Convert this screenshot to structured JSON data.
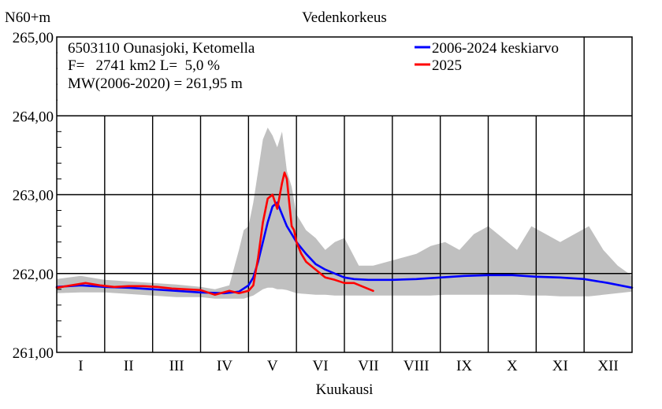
{
  "chart_data": {
    "type": "line",
    "title": "Vedenkorkeus",
    "ylabel": "N60+m",
    "xlabel": "Kuukausi",
    "ylim": [
      261.0,
      265.0
    ],
    "yticks": [
      "261,00",
      "262,00",
      "263,00",
      "264,00",
      "265,00"
    ],
    "xlim": [
      0,
      12
    ],
    "months": [
      "I",
      "II",
      "III",
      "IV",
      "V",
      "VI",
      "VII",
      "VIII",
      "IX",
      "X",
      "XI",
      "XII"
    ],
    "info": [
      "6503110 Ounasjoki, Ketomella",
      "F=   2741 km2 L=  5,0 %",
      "MW(2006-2020) = 261,95 m"
    ],
    "legend_position": "top-right",
    "grid": true,
    "colors": {
      "band": "#c0c0c0",
      "mean": "#0000ff",
      "current": "#ff0000"
    },
    "band": {
      "x": [
        0,
        0.5,
        1,
        1.5,
        2,
        2.5,
        3,
        3.3,
        3.6,
        3.8,
        3.9,
        4.0,
        4.1,
        4.2,
        4.3,
        4.4,
        4.5,
        4.6,
        4.7,
        4.8,
        4.9,
        5.0,
        5.2,
        5.4,
        5.6,
        5.8,
        6.0,
        6.3,
        6.6,
        6.9,
        7.2,
        7.5,
        7.8,
        8.1,
        8.4,
        8.7,
        9.0,
        9.3,
        9.6,
        9.9,
        10.2,
        10.5,
        10.8,
        11.1,
        11.4,
        11.7,
        12
      ],
      "upper": [
        261.93,
        261.97,
        261.92,
        261.9,
        261.88,
        261.86,
        261.83,
        261.8,
        261.85,
        262.3,
        262.55,
        262.6,
        262.9,
        263.3,
        263.7,
        263.85,
        263.75,
        263.6,
        263.8,
        263.3,
        263.1,
        262.75,
        262.55,
        262.45,
        262.3,
        262.4,
        262.45,
        262.1,
        262.1,
        262.15,
        262.2,
        262.25,
        262.35,
        262.4,
        262.3,
        262.5,
        262.6,
        262.45,
        262.3,
        262.6,
        262.5,
        262.4,
        262.5,
        262.6,
        262.3,
        262.1,
        261.97
      ],
      "lower": [
        261.75,
        261.76,
        261.76,
        261.74,
        261.72,
        261.7,
        261.7,
        261.68,
        261.68,
        261.68,
        261.68,
        261.7,
        261.72,
        261.76,
        261.8,
        261.82,
        261.82,
        261.8,
        261.8,
        261.79,
        261.77,
        261.75,
        261.74,
        261.73,
        261.73,
        261.72,
        261.72,
        261.72,
        261.72,
        261.72,
        261.72,
        261.72,
        261.72,
        261.73,
        261.73,
        261.73,
        261.73,
        261.73,
        261.73,
        261.72,
        261.72,
        261.71,
        261.71,
        261.71,
        261.73,
        261.75,
        261.77
      ]
    },
    "series": [
      {
        "name": "2006-2024 keskiarvo",
        "x": [
          0,
          0.5,
          1,
          1.5,
          2,
          2.5,
          3,
          3.5,
          3.8,
          4.0,
          4.1,
          4.2,
          4.3,
          4.4,
          4.5,
          4.6,
          4.7,
          4.8,
          4.9,
          5.0,
          5.2,
          5.4,
          5.6,
          5.8,
          6.0,
          6.2,
          6.5,
          7.0,
          7.5,
          8.0,
          8.5,
          9.0,
          9.5,
          10.0,
          10.5,
          11.0,
          11.5,
          12
        ],
        "values": [
          261.83,
          261.85,
          261.83,
          261.82,
          261.8,
          261.78,
          261.76,
          261.75,
          261.77,
          261.85,
          261.95,
          262.15,
          262.4,
          262.65,
          262.85,
          262.9,
          262.75,
          262.6,
          262.5,
          262.4,
          262.25,
          262.12,
          262.05,
          262.0,
          261.95,
          261.93,
          261.92,
          261.92,
          261.93,
          261.95,
          261.97,
          261.98,
          261.98,
          261.96,
          261.95,
          261.93,
          261.88,
          261.82
        ]
      },
      {
        "name": "2025",
        "x": [
          0,
          0.3,
          0.6,
          0.9,
          1.2,
          1.5,
          1.8,
          2.1,
          2.4,
          2.7,
          3.0,
          3.3,
          3.6,
          3.8,
          4.0,
          4.1,
          4.2,
          4.3,
          4.4,
          4.5,
          4.6,
          4.7,
          4.75,
          4.8,
          4.85,
          4.9,
          4.95,
          5.0,
          5.1,
          5.2,
          5.4,
          5.6,
          5.8,
          6.0,
          6.2,
          6.4,
          6.6
        ],
        "values": [
          261.82,
          261.85,
          261.88,
          261.85,
          261.83,
          261.84,
          261.84,
          261.83,
          261.81,
          261.8,
          261.79,
          261.73,
          261.78,
          261.75,
          261.78,
          261.85,
          262.2,
          262.65,
          262.95,
          263.0,
          262.82,
          263.15,
          263.28,
          263.2,
          262.9,
          262.6,
          262.55,
          262.4,
          262.25,
          262.15,
          262.05,
          261.95,
          261.92,
          261.88,
          261.88,
          261.83,
          261.78
        ]
      }
    ]
  }
}
